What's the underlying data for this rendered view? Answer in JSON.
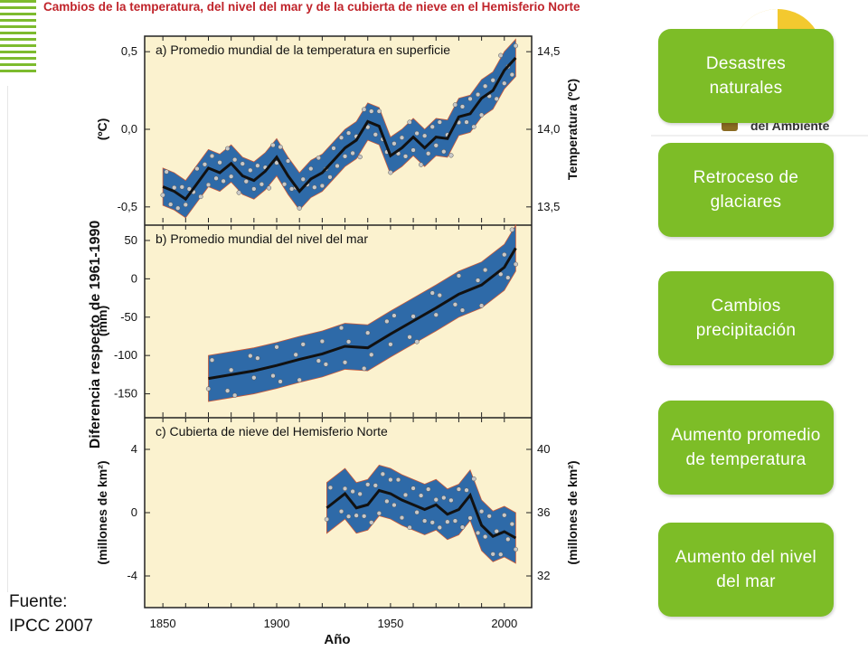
{
  "header": {
    "title": "Cambios de la temperatura, del nivel del mar y de la cubierta de nieve en el Hemisferio Norte"
  },
  "logo": {
    "text": "del Ambiente"
  },
  "buttons": [
    {
      "label": "Desastres naturales"
    },
    {
      "label": "Retroceso de glaciares"
    },
    {
      "label": "Cambios precipitación"
    },
    {
      "label": "Aumento promedio de temperatura"
    },
    {
      "label": "Aumento del nivel del mar"
    }
  ],
  "source": {
    "line1": "Fuente:",
    "line2": "IPCC 2007"
  },
  "colors": {
    "panel_bg": "#fbf2cf",
    "band": "#2e6aa8",
    "line": "#111111",
    "button": "#7dbd27",
    "title": "#c0242b"
  },
  "shared": {
    "ylabel": "Diferencia respecto de 1961-1990",
    "xlabel": "Año",
    "xticks": [
      "1850",
      "1900",
      "1950",
      "2000"
    ]
  },
  "chart_data": [
    {
      "type": "line",
      "title": "a) Promedio mundial de la temperatura en superficie",
      "ylabel_left": "(ºC)",
      "ylabel_right": "Temperatura (ºC)",
      "xlim": [
        1850,
        2005
      ],
      "ylim": [
        -0.6,
        0.6
      ],
      "left_ticks": [
        "0,5",
        "0,0",
        "-0,5"
      ],
      "left_tick_values": [
        0.5,
        0.0,
        -0.5
      ],
      "right_ticks": [
        "14,5",
        "14,0",
        "13,5"
      ],
      "right_tick_values": [
        0.5,
        0.0,
        -0.5
      ],
      "x": [
        1850,
        1855,
        1860,
        1865,
        1870,
        1875,
        1880,
        1885,
        1890,
        1895,
        1900,
        1905,
        1910,
        1915,
        1920,
        1925,
        1930,
        1935,
        1940,
        1945,
        1950,
        1955,
        1960,
        1965,
        1970,
        1975,
        1980,
        1985,
        1990,
        1995,
        2000,
        2005
      ],
      "values": [
        -0.37,
        -0.4,
        -0.45,
        -0.35,
        -0.25,
        -0.28,
        -0.22,
        -0.3,
        -0.33,
        -0.27,
        -0.18,
        -0.3,
        -0.4,
        -0.32,
        -0.28,
        -0.2,
        -0.12,
        -0.07,
        0.05,
        0.02,
        -0.17,
        -0.12,
        -0.05,
        -0.12,
        -0.05,
        -0.06,
        0.08,
        0.1,
        0.2,
        0.25,
        0.38,
        0.46
      ],
      "band": 0.12
    },
    {
      "type": "line",
      "title": "b) Promedio mundial del nivel del mar",
      "ylabel_left": "(mm)",
      "xlim": [
        1850,
        2005
      ],
      "ylim": [
        -180,
        70
      ],
      "left_ticks": [
        "50",
        "0",
        "-50",
        "-100",
        "-150"
      ],
      "left_tick_values": [
        50,
        0,
        -50,
        -100,
        -150
      ],
      "x": [
        1870,
        1880,
        1890,
        1900,
        1910,
        1920,
        1930,
        1940,
        1950,
        1960,
        1970,
        1980,
        1990,
        2000,
        2005
      ],
      "values": [
        -130,
        -125,
        -120,
        -113,
        -105,
        -98,
        -88,
        -90,
        -72,
        -55,
        -38,
        -20,
        -8,
        15,
        40
      ],
      "band": 30
    },
    {
      "type": "line",
      "title": "c) Cubierta de nieve del Hemisferio Norte",
      "ylabel_left": "(millones de km²)",
      "ylabel_right": "(millones de km²)",
      "xlim": [
        1850,
        2005
      ],
      "ylim": [
        -6,
        6
      ],
      "left_ticks": [
        "4",
        "0",
        "-4"
      ],
      "left_tick_values": [
        4,
        0,
        -4
      ],
      "right_ticks": [
        "40",
        "36",
        "32"
      ],
      "right_tick_values": [
        4,
        0,
        -4
      ],
      "x": [
        1922,
        1930,
        1935,
        1940,
        1945,
        1950,
        1955,
        1960,
        1965,
        1970,
        1975,
        1980,
        1985,
        1990,
        1995,
        2000,
        2005
      ],
      "values": [
        0.3,
        1.2,
        0.3,
        0.5,
        1.4,
        1.2,
        0.8,
        0.5,
        0.2,
        0.5,
        -0.1,
        0.2,
        1.1,
        -0.8,
        -1.5,
        -1.2,
        -1.6
      ],
      "band": 1.6
    }
  ]
}
